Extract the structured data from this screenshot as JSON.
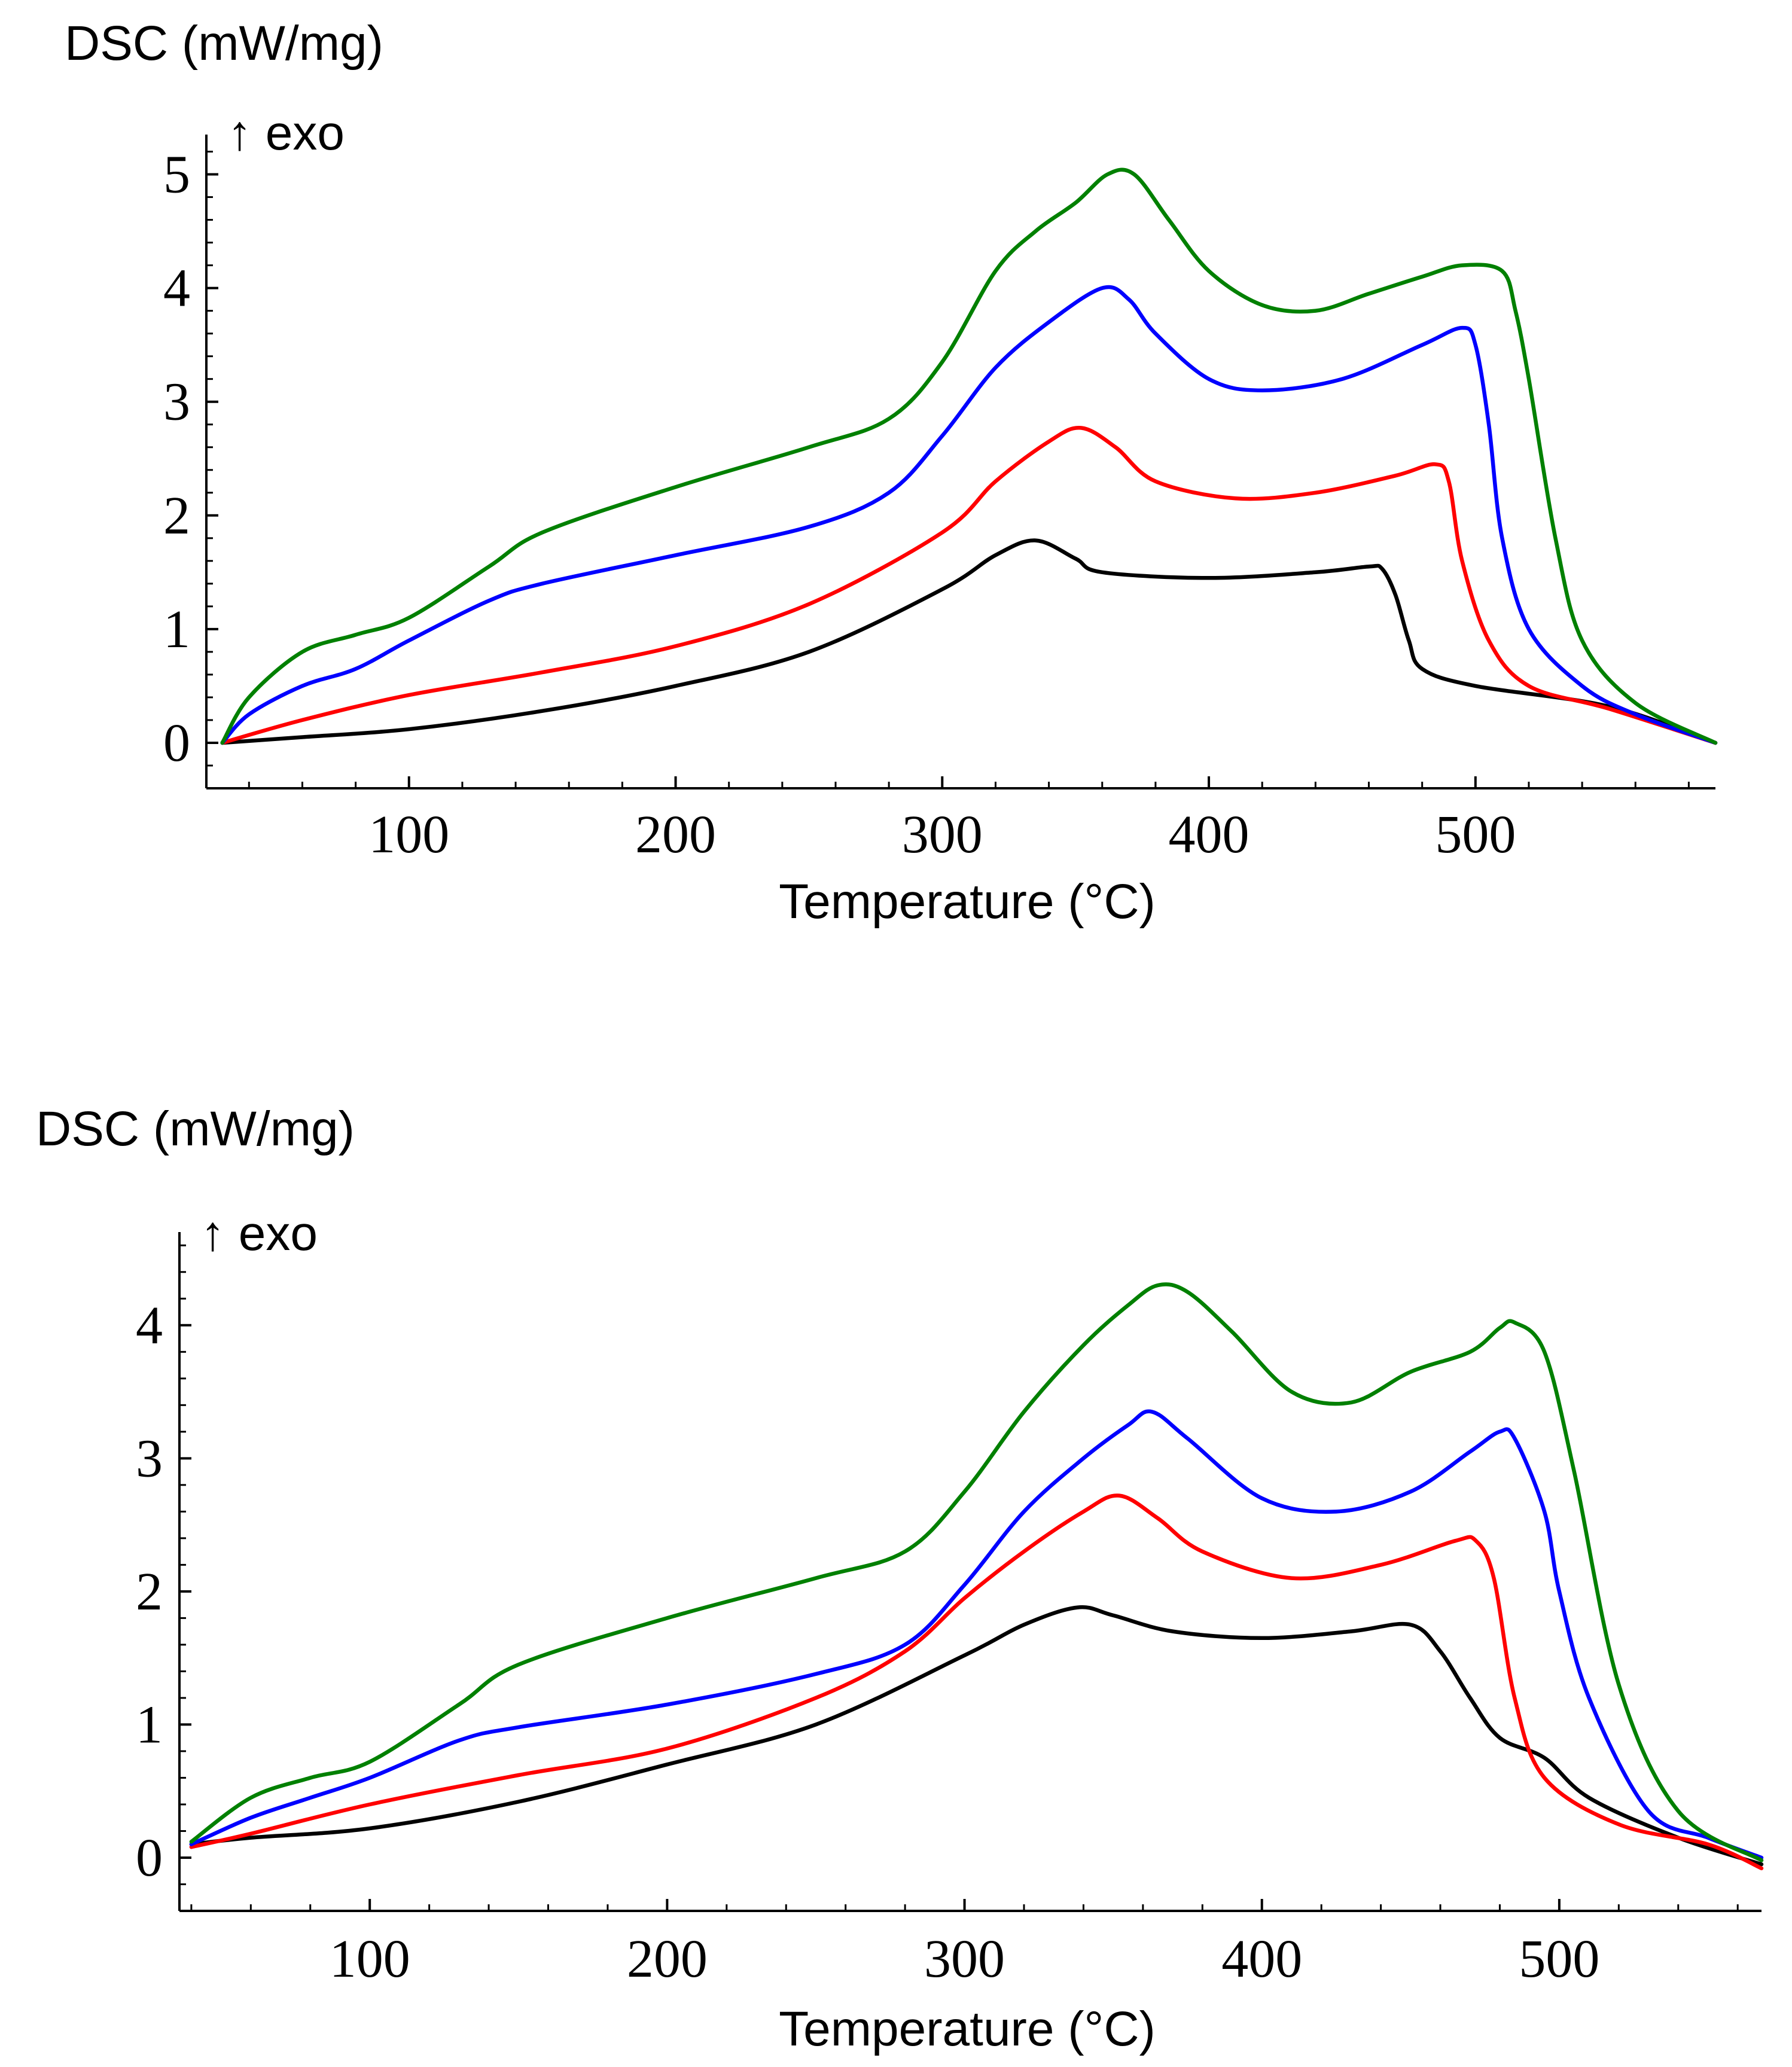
{
  "chart_data": [
    {
      "type": "line",
      "title": "",
      "ylabel": "DSC (mW/mg)",
      "exo_label": "↑ exo",
      "xlabel": "Temperature (°C)",
      "xlim": [
        24,
        590
      ],
      "ylim": [
        -0.4,
        5.35
      ],
      "xticks": [
        100,
        200,
        300,
        400,
        500
      ],
      "xtick_labels": [
        "100",
        "200",
        "300",
        "400",
        "500"
      ],
      "yticks": [
        0,
        1,
        2,
        3,
        4,
        5
      ],
      "ytick_labels": [
        "0",
        "1",
        "2",
        "3",
        "4",
        "5"
      ],
      "grid": false,
      "series": [
        {
          "name": "black",
          "color": "#000000",
          "x": [
            30,
            60,
            100,
            150,
            200,
            250,
            300,
            320,
            335,
            350,
            360,
            400,
            440,
            460,
            465,
            470,
            475,
            480,
            500,
            550,
            590
          ],
          "y": [
            0,
            0.05,
            0.12,
            0.28,
            0.5,
            0.8,
            1.35,
            1.65,
            1.78,
            1.62,
            1.5,
            1.45,
            1.5,
            1.55,
            1.53,
            1.3,
            0.9,
            0.65,
            0.5,
            0.32,
            0.0
          ]
        },
        {
          "name": "red",
          "color": "#ff0000",
          "x": [
            30,
            60,
            100,
            150,
            200,
            250,
            300,
            320,
            340,
            352,
            365,
            380,
            410,
            440,
            470,
            485,
            490,
            495,
            505,
            520,
            550,
            590
          ],
          "y": [
            0,
            0.2,
            0.42,
            0.62,
            0.85,
            1.22,
            1.85,
            2.3,
            2.65,
            2.77,
            2.6,
            2.3,
            2.15,
            2.2,
            2.35,
            2.45,
            2.3,
            1.6,
            0.9,
            0.5,
            0.3,
            0.0
          ]
        },
        {
          "name": "blue",
          "color": "#0000ff",
          "x": [
            30,
            40,
            60,
            80,
            100,
            130,
            150,
            200,
            250,
            280,
            300,
            320,
            340,
            360,
            370,
            380,
            400,
            420,
            450,
            480,
            495,
            500,
            505,
            510,
            520,
            540,
            560,
            590
          ],
          "y": [
            0,
            0.25,
            0.5,
            0.65,
            0.9,
            1.25,
            1.4,
            1.65,
            1.9,
            2.2,
            2.7,
            3.3,
            3.7,
            4.0,
            3.9,
            3.6,
            3.2,
            3.1,
            3.2,
            3.5,
            3.65,
            3.5,
            2.8,
            1.8,
            1.0,
            0.5,
            0.25,
            0.0
          ]
        },
        {
          "name": "green",
          "color": "#008000",
          "x": [
            30,
            40,
            60,
            80,
            100,
            130,
            150,
            200,
            250,
            280,
            300,
            320,
            335,
            350,
            362,
            372,
            385,
            400,
            420,
            440,
            460,
            480,
            495,
            510,
            515,
            520,
            530,
            540,
            560,
            590
          ],
          "y": [
            0,
            0.4,
            0.8,
            0.95,
            1.1,
            1.55,
            1.85,
            2.25,
            2.6,
            2.85,
            3.35,
            4.15,
            4.5,
            4.75,
            5.0,
            5.0,
            4.6,
            4.15,
            3.85,
            3.8,
            3.95,
            4.1,
            4.2,
            4.15,
            3.8,
            3.2,
            1.8,
            0.9,
            0.35,
            0.0
          ]
        }
      ]
    },
    {
      "type": "line",
      "title": "",
      "ylabel": "DSC (mW/mg)",
      "exo_label": "↑ exo",
      "xlabel": "Temperature (°C)",
      "xlim": [
        36,
        568
      ],
      "ylim": [
        -0.4,
        4.7
      ],
      "xticks": [
        100,
        200,
        300,
        400,
        500
      ],
      "xtick_labels": [
        "100",
        "200",
        "300",
        "400",
        "500"
      ],
      "yticks": [
        0,
        1,
        2,
        3,
        4
      ],
      "ytick_labels": [
        "0",
        "1",
        "2",
        "3",
        "4"
      ],
      "grid": false,
      "series": [
        {
          "name": "black",
          "color": "#000000",
          "x": [
            40,
            60,
            100,
            150,
            200,
            250,
            300,
            320,
            338,
            350,
            370,
            400,
            430,
            450,
            460,
            470,
            480,
            495,
            510,
            540,
            568
          ],
          "y": [
            0.1,
            0.15,
            0.22,
            0.42,
            0.7,
            1.0,
            1.52,
            1.75,
            1.88,
            1.82,
            1.7,
            1.65,
            1.7,
            1.75,
            1.55,
            1.2,
            0.9,
            0.75,
            0.45,
            0.15,
            -0.05
          ]
        },
        {
          "name": "red",
          "color": "#ff0000",
          "x": [
            40,
            60,
            100,
            150,
            200,
            250,
            280,
            300,
            320,
            340,
            352,
            365,
            380,
            410,
            440,
            465,
            472,
            478,
            485,
            495,
            520,
            550,
            568
          ],
          "y": [
            0.08,
            0.18,
            0.4,
            0.62,
            0.82,
            1.2,
            1.55,
            1.95,
            2.3,
            2.6,
            2.72,
            2.55,
            2.3,
            2.1,
            2.2,
            2.38,
            2.38,
            2.1,
            1.2,
            0.6,
            0.25,
            0.1,
            -0.08
          ]
        },
        {
          "name": "blue",
          "color": "#0000ff",
          "x": [
            40,
            60,
            80,
            100,
            130,
            150,
            200,
            250,
            280,
            300,
            320,
            340,
            355,
            363,
            375,
            400,
            425,
            450,
            470,
            480,
            485,
            495,
            500,
            510,
            530,
            550,
            568
          ],
          "y": [
            0.1,
            0.3,
            0.45,
            0.6,
            0.88,
            0.98,
            1.15,
            1.38,
            1.6,
            2.05,
            2.6,
            3.0,
            3.25,
            3.35,
            3.15,
            2.7,
            2.6,
            2.75,
            3.05,
            3.2,
            3.15,
            2.6,
            2.0,
            1.2,
            0.35,
            0.15,
            0.0
          ]
        },
        {
          "name": "green",
          "color": "#008000",
          "x": [
            40,
            60,
            80,
            100,
            130,
            150,
            200,
            250,
            280,
            300,
            320,
            340,
            355,
            365,
            375,
            390,
            410,
            430,
            450,
            470,
            480,
            485,
            495,
            505,
            520,
            540,
            568
          ],
          "y": [
            0.12,
            0.45,
            0.6,
            0.72,
            1.15,
            1.45,
            1.8,
            2.1,
            2.3,
            2.75,
            3.35,
            3.85,
            4.15,
            4.3,
            4.25,
            3.95,
            3.5,
            3.42,
            3.65,
            3.8,
            3.98,
            4.02,
            3.8,
            2.9,
            1.3,
            0.35,
            -0.02
          ]
        }
      ]
    }
  ]
}
